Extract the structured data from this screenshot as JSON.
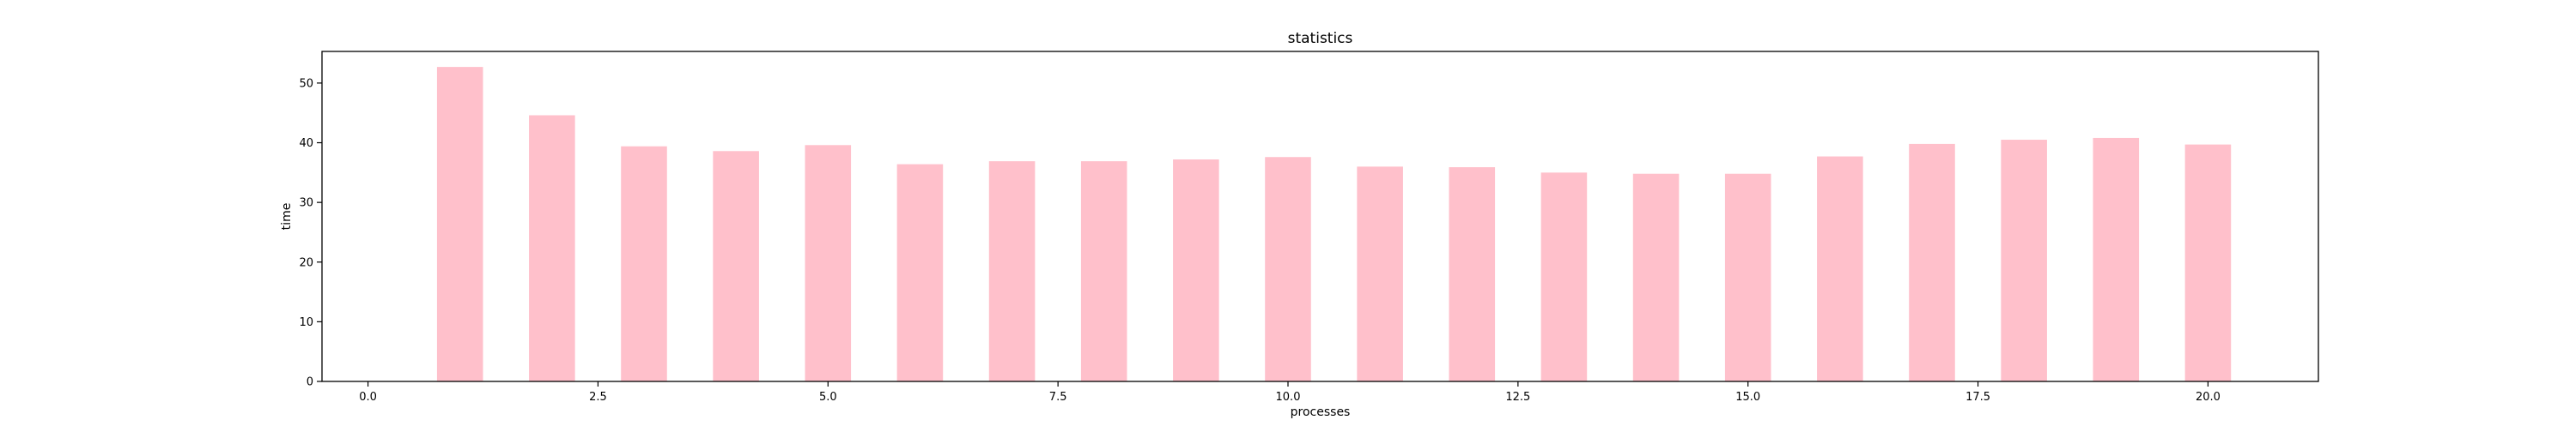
{
  "chart_data": {
    "type": "bar",
    "title": "statistics",
    "xlabel": "processes",
    "ylabel": "time",
    "x": [
      1,
      2,
      3,
      4,
      5,
      6,
      7,
      8,
      9,
      10,
      11,
      12,
      13,
      14,
      15,
      16,
      17,
      18,
      19,
      20
    ],
    "values": [
      52.7,
      44.6,
      39.4,
      38.6,
      39.6,
      36.4,
      36.9,
      36.9,
      37.2,
      37.6,
      36.0,
      35.9,
      35.0,
      34.8,
      34.8,
      37.7,
      39.8,
      40.5,
      40.8,
      39.7
    ],
    "bar_color": "#ffc0cb",
    "xlim": [
      -0.5,
      21.2
    ],
    "ylim": [
      0,
      55.3
    ],
    "xticks": [
      0.0,
      2.5,
      5.0,
      7.5,
      10.0,
      12.5,
      15.0,
      17.5,
      20.0
    ],
    "xtick_labels": [
      "0.0",
      "2.5",
      "5.0",
      "7.5",
      "10.0",
      "12.5",
      "15.0",
      "17.5",
      "20.0"
    ],
    "yticks": [
      0,
      10,
      20,
      30,
      40,
      50
    ],
    "ytick_labels": [
      "0",
      "10",
      "20",
      "30",
      "40",
      "50"
    ],
    "grid": false,
    "legend": false
  }
}
